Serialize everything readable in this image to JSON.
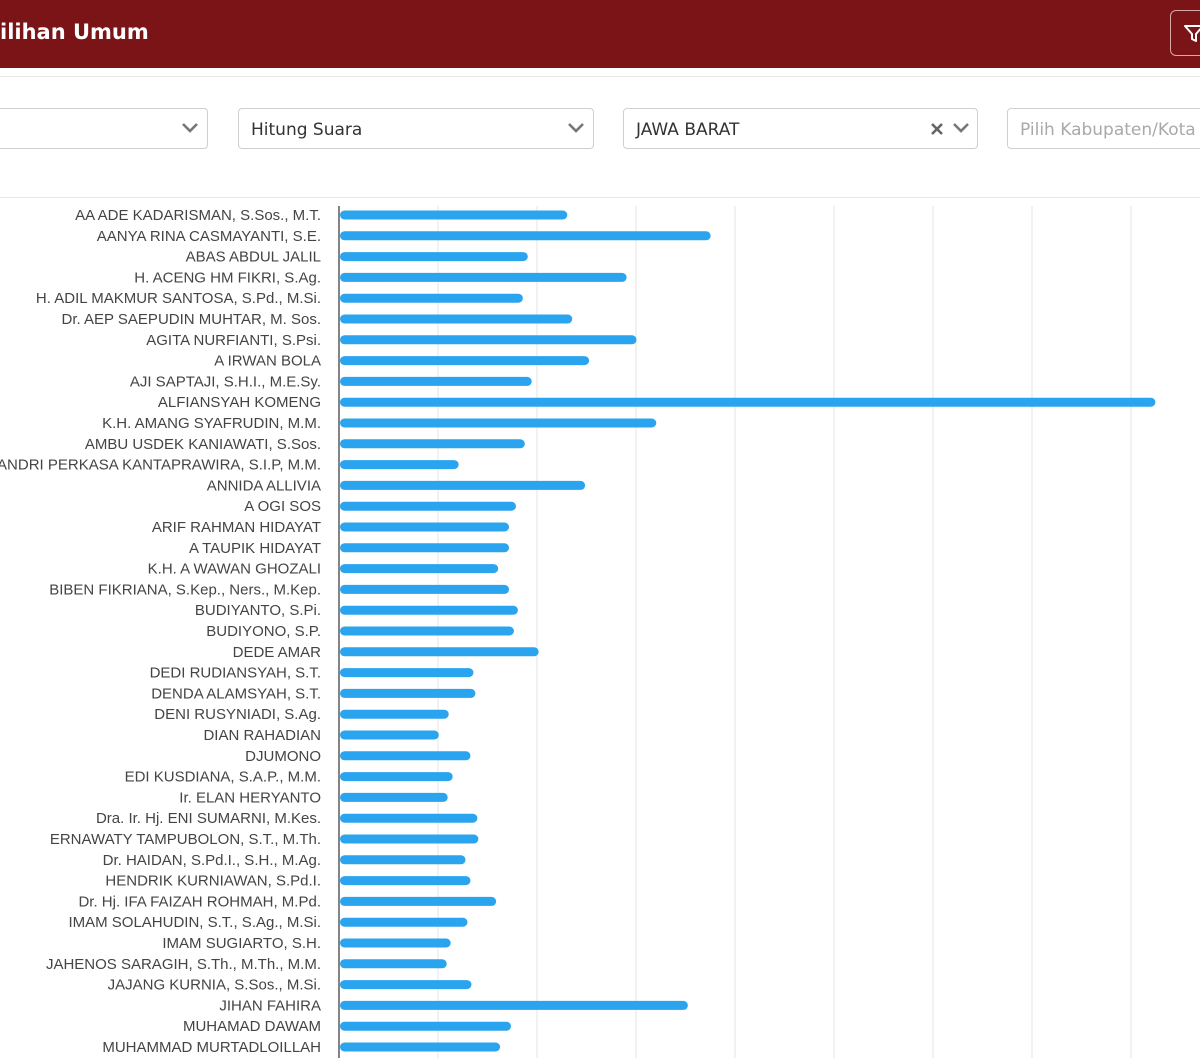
{
  "header": {
    "title": "ilihan Umum",
    "filter_icon": "filter-icon",
    "background": "#7b1416"
  },
  "filters": {
    "first": {
      "value": ""
    },
    "type": {
      "value": "Hitung Suara"
    },
    "province": {
      "value": "JAWA BARAT"
    },
    "regency": {
      "placeholder": "Pilih Kabupaten/Kota"
    }
  },
  "chart_data": {
    "type": "bar",
    "orientation": "horizontal",
    "bar_color": "#2aa4ee",
    "grid": true,
    "x_gridlines": 8,
    "categories": [
      "AA ADE KADARISMAN, S.Sos., M.T.",
      "AANYA RINA CASMAYANTI, S.E.",
      "ABAS ABDUL JALIL",
      "H. ACENG HM FIKRI, S.Ag.",
      "H. ADIL MAKMUR SANTOSA, S.Pd., M.Si.",
      "Dr. AEP SAEPUDIN MUHTAR, M. Sos.",
      "AGITA NURFIANTI, S.Psi.",
      "A IRWAN BOLA",
      "AJI SAPTAJI, S.H.I., M.E.Sy.",
      "ALFIANSYAH KOMENG",
      "K.H. AMANG SYAFRUDIN, M.M.",
      "AMBU USDEK KANIAWATI, S.Sos.",
      "ANDRI PERKASA KANTAPRAWIRA, S.I.P, M.M.",
      "ANNIDA ALLIVIA",
      "A OGI SOS",
      "ARIF RAHMAN HIDAYAT",
      "A TAUPIK HIDAYAT",
      "K.H. A WAWAN GHOZALI",
      "BIBEN FIKRIANA, S.Kep., Ners., M.Kep.",
      "BUDIYANTO, S.Pi.",
      "BUDIYONO, S.P.",
      "DEDE AMAR",
      "DEDI RUDIANSYAH, S.T.",
      "DENDA ALAMSYAH, S.T.",
      "DENI RUSYNIADI, S.Ag.",
      "DIAN RAHADIAN",
      "DJUMONO",
      "EDI KUSDIANA, S.A.P., M.M.",
      "Ir. ELAN HERYANTO",
      "Dra. Ir. Hj. ENI SUMARNI, M.Kes.",
      "ERNAWATY TAMPUBOLON, S.T., M.Th.",
      "Dr. HAIDAN, S.Pd.I., S.H., M.Ag.",
      "HENDRIK KURNIAWAN, S.Pd.I.",
      "Dr. Hj. IFA FAIZAH ROHMAH, M.Pd.",
      "IMAM SOLAHUDIN, S.T., S.Ag., M.Si.",
      "IMAM SUGIARTO, S.H.",
      "JAHENOS SARAGIH, S.Th., M.Th., M.M.",
      "JAJANG KURNIA, S.Sos., M.Si.",
      "JIHAN FAHIRA",
      "MUHAMAD DAWAM",
      "MUHAMMAD MURTADLOILLAH"
    ],
    "values": [
      2.3,
      3.75,
      1.9,
      2.9,
      1.85,
      2.35,
      3.0,
      2.52,
      1.94,
      8.25,
      3.2,
      1.87,
      1.2,
      2.48,
      1.78,
      1.71,
      1.71,
      1.6,
      1.71,
      1.8,
      1.76,
      2.01,
      1.35,
      1.37,
      1.1,
      1.0,
      1.32,
      1.14,
      1.09,
      1.39,
      1.4,
      1.27,
      1.32,
      1.58,
      1.29,
      1.12,
      1.08,
      1.33,
      3.52,
      1.73,
      1.62
    ],
    "xlim": [
      0,
      8.6
    ]
  }
}
